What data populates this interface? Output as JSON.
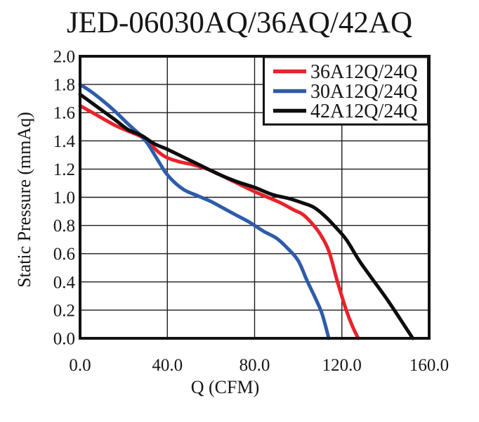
{
  "chart_data": {
    "type": "line",
    "title": "JED-06030AQ/36AQ/42AQ",
    "xlabel": "Q (CFM)",
    "ylabel": "Static Pressure (mmAq)",
    "xlim": [
      0,
      160
    ],
    "ylim": [
      0,
      2.0
    ],
    "x_tick_labels": [
      "0.0",
      "40.0",
      "80.0",
      "120.0",
      "160.0"
    ],
    "y_tick_labels": [
      "0.0",
      "0.2",
      "0.4",
      "0.6",
      "0.8",
      "1.0",
      "1.2",
      "1.4",
      "1.6",
      "1.8",
      "2.0"
    ],
    "grid": true,
    "legend_position": "top-right-inside",
    "background": "#ffffff",
    "frame_color": "#111111",
    "grid_color": "#1c1c1c",
    "series": [
      {
        "name": "36A12Q/24Q",
        "color": "#e8232b",
        "points": [
          [
            0,
            1.65
          ],
          [
            8,
            1.58
          ],
          [
            16,
            1.51
          ],
          [
            22,
            1.47
          ],
          [
            28,
            1.43
          ],
          [
            32,
            1.38
          ],
          [
            36,
            1.32
          ],
          [
            40,
            1.28
          ],
          [
            46,
            1.25
          ],
          [
            52,
            1.23
          ],
          [
            60,
            1.19
          ],
          [
            68,
            1.13
          ],
          [
            76,
            1.07
          ],
          [
            80,
            1.04
          ],
          [
            86,
            1.0
          ],
          [
            92,
            0.96
          ],
          [
            98,
            0.91
          ],
          [
            102,
            0.88
          ],
          [
            106,
            0.82
          ],
          [
            110,
            0.74
          ],
          [
            114,
            0.62
          ],
          [
            118,
            0.4
          ],
          [
            122,
            0.2
          ],
          [
            125,
            0.08
          ],
          [
            127.5,
            0.0
          ]
        ]
      },
      {
        "name": "30A12Q/24Q",
        "color": "#2e5cab",
        "points": [
          [
            0,
            1.8
          ],
          [
            5,
            1.75
          ],
          [
            10,
            1.69
          ],
          [
            16,
            1.61
          ],
          [
            22,
            1.52
          ],
          [
            27,
            1.45
          ],
          [
            31,
            1.38
          ],
          [
            35,
            1.28
          ],
          [
            39,
            1.18
          ],
          [
            43,
            1.11
          ],
          [
            48,
            1.05
          ],
          [
            54,
            1.01
          ],
          [
            60,
            0.97
          ],
          [
            66,
            0.92
          ],
          [
            72,
            0.87
          ],
          [
            78,
            0.82
          ],
          [
            84,
            0.76
          ],
          [
            90,
            0.71
          ],
          [
            95,
            0.64
          ],
          [
            100,
            0.55
          ],
          [
            104,
            0.41
          ],
          [
            108,
            0.28
          ],
          [
            111,
            0.17
          ],
          [
            114,
            0.0
          ]
        ]
      },
      {
        "name": "42A12Q/24Q",
        "color": "#0d0d0d",
        "points": [
          [
            0,
            1.73
          ],
          [
            8,
            1.64
          ],
          [
            16,
            1.55
          ],
          [
            22,
            1.48
          ],
          [
            28,
            1.44
          ],
          [
            34,
            1.38
          ],
          [
            40,
            1.34
          ],
          [
            48,
            1.28
          ],
          [
            56,
            1.22
          ],
          [
            64,
            1.16
          ],
          [
            72,
            1.11
          ],
          [
            80,
            1.07
          ],
          [
            88,
            1.02
          ],
          [
            96,
            0.99
          ],
          [
            102,
            0.96
          ],
          [
            107,
            0.93
          ],
          [
            112,
            0.87
          ],
          [
            117,
            0.79
          ],
          [
            122,
            0.7
          ],
          [
            128,
            0.55
          ],
          [
            134,
            0.42
          ],
          [
            141,
            0.27
          ],
          [
            147,
            0.13
          ],
          [
            152.5,
            0.0
          ]
        ]
      }
    ]
  }
}
